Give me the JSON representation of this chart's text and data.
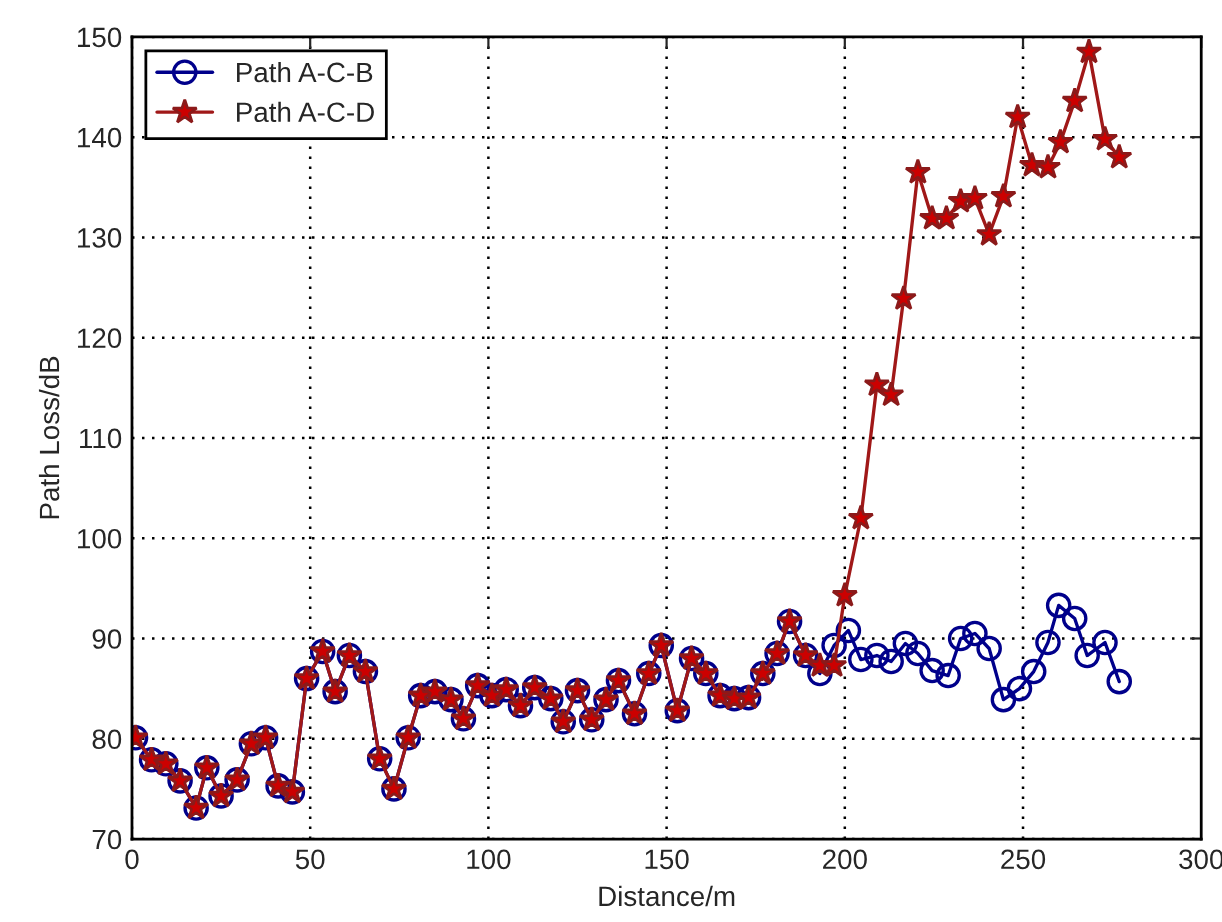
{
  "chart_data": {
    "type": "line",
    "xlabel": "Distance/m",
    "ylabel": "Path Loss/dB",
    "xlim": [
      0,
      300
    ],
    "xticks": [
      0,
      50,
      100,
      150,
      200,
      250,
      300
    ],
    "ylim": [
      70,
      150
    ],
    "yticks": [
      70,
      80,
      90,
      100,
      110,
      120,
      130,
      140,
      150
    ],
    "grid": true,
    "legend": "top left",
    "line_style": "solid",
    "series": [
      {
        "name": "Path A-C-B",
        "color": "#00008b",
        "marker": "circle",
        "x": [
          1,
          5.5,
          9.5,
          13.5,
          18,
          21,
          25,
          29.5,
          33.5,
          37.5,
          41,
          45,
          49,
          53.5,
          57,
          61,
          65.5,
          69.5,
          73.5,
          77.5,
          81,
          85,
          89.5,
          93,
          97,
          101,
          105,
          109,
          113,
          117.5,
          121,
          125,
          129,
          133,
          136.5,
          141,
          145,
          148.5,
          153,
          157,
          161,
          165,
          169,
          173,
          177,
          181,
          184.5,
          189,
          193,
          197,
          201,
          204.5,
          209,
          213,
          217,
          220.5,
          224.5,
          229,
          232.5,
          236.5,
          240.5,
          244.5,
          249,
          253,
          257,
          260,
          264.5,
          268,
          273,
          277
        ],
        "values": [
          80.1,
          77.9,
          77.5,
          75.8,
          73.1,
          77.1,
          74.3,
          75.9,
          79.5,
          80.1,
          75.3,
          74.7,
          86,
          88.7,
          84.7,
          88.3,
          86.7,
          78,
          75,
          80.1,
          84.3,
          84.7,
          83.9,
          82,
          85.3,
          84.3,
          84.9,
          83.3,
          85.1,
          84,
          81.7,
          84.8,
          81.9,
          83.9,
          85.8,
          82.5,
          86.5,
          89.3,
          82.8,
          88,
          86.5,
          84.3,
          84,
          84.1,
          86.5,
          88.5,
          91.7,
          88.3,
          86.5,
          89.3,
          90.8,
          87.9,
          88.3,
          87.7,
          89.5,
          88.5,
          86.8,
          86.3,
          90,
          90.5,
          89,
          83.9,
          85,
          86.7,
          89.6,
          93.3,
          92,
          88.3,
          89.6,
          85.7
        ]
      },
      {
        "name": "Path A-C-D",
        "color": "#cc0000",
        "marker": "star",
        "x": [
          1,
          5.5,
          9.5,
          13.5,
          18,
          21,
          25,
          29.5,
          33.5,
          37.5,
          41,
          45,
          49,
          53.5,
          57,
          61,
          65.5,
          69.5,
          73.5,
          77.5,
          81,
          85,
          89.5,
          93,
          97,
          101,
          105,
          109,
          113,
          117.5,
          121,
          125,
          129,
          133,
          136.5,
          141,
          145,
          148.5,
          153,
          157,
          161,
          165,
          169,
          173,
          177,
          181,
          184.5,
          189,
          193,
          197,
          200,
          204.5,
          209,
          213,
          216.5,
          220.5,
          224.5,
          228.5,
          232.5,
          236.5,
          240.5,
          244.5,
          248.5,
          252.5,
          257,
          260.5,
          264.5,
          268.5,
          273,
          277
        ],
        "values": [
          80.1,
          77.9,
          77.5,
          75.8,
          73.1,
          77.1,
          74.3,
          75.9,
          79.5,
          80.1,
          75.3,
          74.7,
          86,
          88.7,
          84.7,
          88.3,
          86.7,
          78,
          75,
          80.1,
          84.3,
          84.7,
          83.9,
          82,
          85.3,
          84.3,
          84.9,
          83.3,
          85.1,
          84,
          81.7,
          84.8,
          81.9,
          83.9,
          85.8,
          82.5,
          86.5,
          89.3,
          82.8,
          88,
          86.5,
          84.3,
          84,
          84.1,
          86.5,
          88.5,
          91.7,
          88.3,
          87.3,
          87.3,
          94.3,
          102,
          115.3,
          114.3,
          123.9,
          136.5,
          131.9,
          131.9,
          133.6,
          133.9,
          130.3,
          134.1,
          142,
          137.2,
          137,
          139.5,
          143.6,
          148.5,
          139.8,
          138
        ]
      }
    ]
  }
}
